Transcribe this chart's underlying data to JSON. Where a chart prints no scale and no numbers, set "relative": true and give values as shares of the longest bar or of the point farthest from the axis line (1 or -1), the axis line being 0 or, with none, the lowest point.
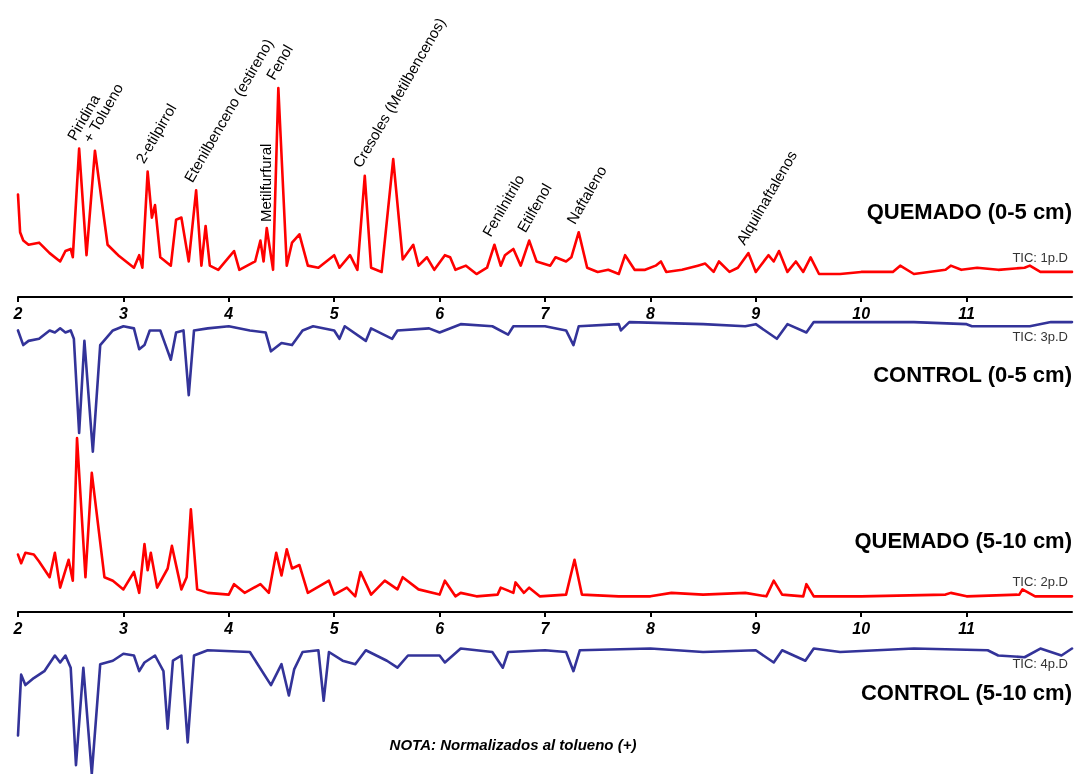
{
  "chart_data": [
    {
      "type": "line",
      "relative": true,
      "xlim": [
        2,
        12
      ],
      "xticks": [
        2,
        3,
        4,
        5,
        6,
        7,
        8,
        9,
        10,
        11
      ],
      "marker": "none",
      "line_style": "solid",
      "series": [
        {
          "name": "QUEMADO (0-5 cm)",
          "color": "#ff0000",
          "x": [
            2.0,
            2.02,
            2.05,
            2.1,
            2.2,
            2.3,
            2.4,
            2.45,
            2.5,
            2.52,
            2.58,
            2.65,
            2.73,
            2.85,
            2.95,
            3.1,
            3.15,
            3.18,
            3.23,
            3.27,
            3.3,
            3.35,
            3.45,
            3.5,
            3.55,
            3.62,
            3.69,
            3.74,
            3.78,
            3.82,
            3.9,
            4.05,
            4.1,
            4.25,
            4.3,
            4.33,
            4.36,
            4.42,
            4.47,
            4.55,
            4.6,
            4.67,
            4.75,
            4.85,
            5.0,
            5.05,
            5.15,
            5.22,
            5.29,
            5.35,
            5.45,
            5.56,
            5.65,
            5.75,
            5.8,
            5.88,
            5.95,
            6.05,
            6.1,
            6.15,
            6.25,
            6.35,
            6.45,
            6.52,
            6.58,
            6.62,
            6.7,
            6.77,
            6.85,
            6.92,
            7.05,
            7.1,
            7.2,
            7.25,
            7.32,
            7.4,
            7.5,
            7.6,
            7.7,
            7.76,
            7.85,
            7.95,
            8.05,
            8.1,
            8.15,
            8.3,
            8.45,
            8.52,
            8.6,
            8.65,
            8.75,
            8.83,
            8.93,
            9.0,
            9.12,
            9.17,
            9.22,
            9.3,
            9.38,
            9.45,
            9.52,
            9.6,
            9.8,
            10.0,
            10.3,
            10.37,
            10.5,
            10.8,
            10.85,
            10.95,
            11.1,
            11.3,
            11.55,
            11.6,
            11.7,
            12.0
          ],
          "values": [
            0.49,
            0.31,
            0.27,
            0.25,
            0.26,
            0.21,
            0.17,
            0.22,
            0.23,
            0.19,
            0.71,
            0.2,
            0.7,
            0.25,
            0.2,
            0.14,
            0.2,
            0.14,
            0.6,
            0.38,
            0.44,
            0.19,
            0.15,
            0.37,
            0.38,
            0.17,
            0.51,
            0.15,
            0.34,
            0.15,
            0.13,
            0.22,
            0.13,
            0.17,
            0.27,
            0.17,
            0.33,
            0.13,
            1,
            0.15,
            0.26,
            0.3,
            0.15,
            0.14,
            0.2,
            0.14,
            0.2,
            0.13,
            0.58,
            0.14,
            0.12,
            0.66,
            0.18,
            0.25,
            0.15,
            0.19,
            0.13,
            0.2,
            0.19,
            0.13,
            0.15,
            0.11,
            0.14,
            0.25,
            0.15,
            0.2,
            0.23,
            0.15,
            0.27,
            0.17,
            0.15,
            0.19,
            0.17,
            0.19,
            0.31,
            0.14,
            0.12,
            0.13,
            0.11,
            0.2,
            0.13,
            0.13,
            0.15,
            0.17,
            0.12,
            0.13,
            0.15,
            0.16,
            0.12,
            0.17,
            0.12,
            0.14,
            0.21,
            0.12,
            0.2,
            0.17,
            0.22,
            0.12,
            0.17,
            0.12,
            0.19,
            0.11,
            0.11,
            0.12,
            0.12,
            0.15,
            0.11,
            0.13,
            0.15,
            0.13,
            0.14,
            0.13,
            0.14,
            0.15,
            0.12,
            0.12
          ]
        },
        {
          "name": "CONTROL (0-5 cm)",
          "color": "#333399",
          "x": [
            2.0,
            2.05,
            2.1,
            2.2,
            2.3,
            2.35,
            2.4,
            2.45,
            2.5,
            2.53,
            2.58,
            2.63,
            2.71,
            2.78,
            2.9,
            3.0,
            3.1,
            3.15,
            3.2,
            3.25,
            3.35,
            3.4,
            3.45,
            3.5,
            3.57,
            3.62,
            3.67,
            3.8,
            4.0,
            4.2,
            4.35,
            4.4,
            4.5,
            4.6,
            4.7,
            4.8,
            5.0,
            5.05,
            5.1,
            5.3,
            5.35,
            5.55,
            5.6,
            5.9,
            6.0,
            6.2,
            6.5,
            6.65,
            6.7,
            7.0,
            7.2,
            7.27,
            7.32,
            7.7,
            7.72,
            7.8,
            8.5,
            8.9,
            9.0,
            9.2,
            9.3,
            9.48,
            9.55,
            10.5,
            11.0,
            11.05,
            11.6,
            11.8,
            12.0
          ],
          "values": [
            -0.16,
            -0.23,
            -0.21,
            -0.2,
            -0.16,
            -0.17,
            -0.15,
            -0.17,
            -0.16,
            -0.2,
            -0.65,
            -0.21,
            -0.74,
            -0.23,
            -0.16,
            -0.14,
            -0.15,
            -0.25,
            -0.23,
            -0.16,
            -0.16,
            -0.23,
            -0.3,
            -0.17,
            -0.16,
            -0.47,
            -0.16,
            -0.15,
            -0.14,
            -0.16,
            -0.17,
            -0.26,
            -0.22,
            -0.23,
            -0.16,
            -0.14,
            -0.16,
            -0.2,
            -0.14,
            -0.21,
            -0.15,
            -0.2,
            -0.16,
            -0.15,
            -0.17,
            -0.13,
            -0.14,
            -0.18,
            -0.14,
            -0.14,
            -0.16,
            -0.23,
            -0.14,
            -0.13,
            -0.16,
            -0.12,
            -0.13,
            -0.14,
            -0.13,
            -0.2,
            -0.13,
            -0.17,
            -0.12,
            -0.12,
            -0.13,
            -0.14,
            -0.14,
            -0.12,
            -0.12
          ]
        }
      ],
      "annotations": [
        "TIC: 1p.D",
        "TIC: 3p.D",
        {
          "text": "Piridina",
          "x": 2.58,
          "y": 0.71
        },
        {
          "text": "+ Tolueno",
          "x": 2.73,
          "y": 0.7
        },
        {
          "text": "2-etilpirrol",
          "x": 3.23,
          "y": 0.6
        },
        {
          "text": "Etenilbenceno (estireno)",
          "x": 3.69,
          "y": 0.51
        },
        {
          "text": "Metilfurfural",
          "x": 4.36,
          "y": 0.33
        },
        {
          "text": "Fenol",
          "x": 4.47,
          "y": 1
        },
        {
          "text": "Cresoles (Metilbencenos)",
          "x": 5.29,
          "y": 0.58
        },
        {
          "text": "Fenilnitrilo",
          "x": 6.52,
          "y": 0.25
        },
        {
          "text": "Etilfenol",
          "x": 6.85,
          "y": 0.27
        },
        {
          "text": "Naftaleno",
          "x": 7.32,
          "y": 0.31
        },
        {
          "text": "Alquilnaftalenos",
          "x": 8.93,
          "y": 0.21
        }
      ]
    },
    {
      "type": "line",
      "relative": true,
      "xlim": [
        2,
        12
      ],
      "xticks": [
        2,
        3,
        4,
        5,
        6,
        7,
        8,
        9,
        10,
        11
      ],
      "marker": "none",
      "line_style": "solid",
      "series": [
        {
          "name": "QUEMADO (5-10 cm)",
          "color": "#ff0000",
          "x": [
            2.0,
            2.03,
            2.07,
            2.15,
            2.2,
            2.3,
            2.35,
            2.4,
            2.48,
            2.52,
            2.56,
            2.64,
            2.7,
            2.82,
            2.9,
            3.0,
            3.1,
            3.15,
            3.2,
            3.23,
            3.26,
            3.32,
            3.42,
            3.46,
            3.55,
            3.6,
            3.64,
            3.7,
            3.8,
            4.0,
            4.05,
            4.15,
            4.3,
            4.38,
            4.45,
            4.5,
            4.55,
            4.6,
            4.67,
            4.75,
            4.95,
            5.0,
            5.12,
            5.2,
            5.25,
            5.35,
            5.48,
            5.6,
            5.65,
            5.8,
            6.0,
            6.05,
            6.15,
            6.2,
            6.35,
            6.55,
            6.58,
            6.7,
            6.72,
            6.8,
            6.85,
            6.95,
            7.2,
            7.28,
            7.35,
            7.7,
            8.0,
            8.2,
            8.5,
            8.9,
            9.1,
            9.17,
            9.25,
            9.45,
            9.48,
            9.55,
            10.0,
            10.8,
            10.85,
            11.0,
            11.5,
            11.53,
            11.65,
            12.0
          ],
          "values": [
            0.33,
            0.28,
            0.34,
            0.33,
            0.29,
            0.2,
            0.34,
            0.14,
            0.3,
            0.18,
            1,
            0.2,
            0.8,
            0.2,
            0.18,
            0.13,
            0.23,
            0.11,
            0.39,
            0.24,
            0.34,
            0.14,
            0.25,
            0.38,
            0.13,
            0.2,
            0.59,
            0.13,
            0.11,
            0.1,
            0.16,
            0.11,
            0.16,
            0.11,
            0.34,
            0.21,
            0.36,
            0.25,
            0.27,
            0.11,
            0.18,
            0.1,
            0.14,
            0.09,
            0.23,
            0.1,
            0.18,
            0.13,
            0.2,
            0.13,
            0.1,
            0.18,
            0.09,
            0.11,
            0.09,
            0.1,
            0.14,
            0.11,
            0.17,
            0.11,
            0.14,
            0.09,
            0.1,
            0.3,
            0.1,
            0.09,
            0.09,
            0.11,
            0.1,
            0.11,
            0.09,
            0.18,
            0.1,
            0.09,
            0.16,
            0.09,
            0.09,
            0.1,
            0.11,
            0.09,
            0.1,
            0.13,
            0.09,
            0.09
          ]
        },
        {
          "name": "CONTROL (5-10 cm)",
          "color": "#333399",
          "x": [
            2.0,
            2.03,
            2.07,
            2.15,
            2.25,
            2.35,
            2.4,
            2.45,
            2.5,
            2.55,
            2.62,
            2.7,
            2.78,
            2.9,
            3.0,
            3.1,
            3.15,
            3.2,
            3.3,
            3.38,
            3.42,
            3.47,
            3.55,
            3.61,
            3.67,
            3.8,
            4.2,
            4.4,
            4.5,
            4.57,
            4.62,
            4.7,
            4.85,
            4.9,
            4.95,
            5.08,
            5.2,
            5.3,
            5.5,
            5.6,
            5.7,
            6.0,
            6.05,
            6.2,
            6.5,
            6.6,
            6.65,
            7.0,
            7.2,
            7.27,
            7.33,
            8.0,
            8.5,
            9.0,
            9.17,
            9.25,
            9.47,
            9.55,
            9.8,
            10.5,
            11.2,
            11.3,
            11.55,
            11.7,
            11.9,
            12.0
          ],
          "values": [
            -0.71,
            -0.36,
            -0.42,
            -0.38,
            -0.34,
            -0.25,
            -0.29,
            -0.25,
            -0.32,
            -0.88,
            -0.32,
            -0.93,
            -0.3,
            -0.28,
            -0.24,
            -0.25,
            -0.34,
            -0.29,
            -0.25,
            -0.34,
            -0.67,
            -0.28,
            -0.25,
            -0.75,
            -0.25,
            -0.22,
            -0.23,
            -0.42,
            -0.3,
            -0.48,
            -0.33,
            -0.23,
            -0.22,
            -0.51,
            -0.23,
            -0.28,
            -0.3,
            -0.22,
            -0.28,
            -0.32,
            -0.25,
            -0.25,
            -0.29,
            -0.21,
            -0.23,
            -0.32,
            -0.23,
            -0.22,
            -0.23,
            -0.34,
            -0.22,
            -0.21,
            -0.23,
            -0.22,
            -0.29,
            -0.22,
            -0.28,
            -0.21,
            -0.23,
            -0.21,
            -0.22,
            -0.25,
            -0.26,
            -0.21,
            -0.25,
            -0.21
          ]
        }
      ],
      "annotations": [
        "TIC: 2p.D",
        "TIC: 4p.D",
        "NOTA: Normalizados al tolueno (+)"
      ]
    }
  ]
}
